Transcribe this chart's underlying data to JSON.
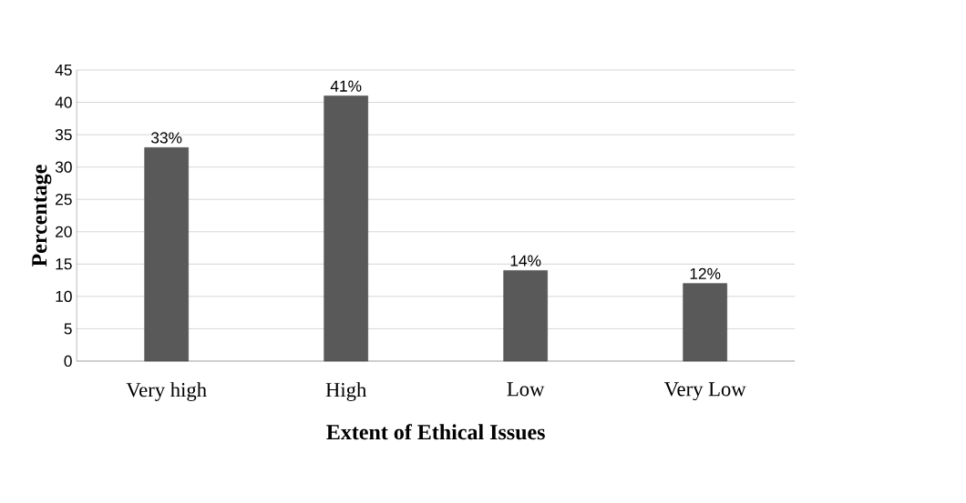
{
  "chart_data": {
    "type": "bar",
    "xlabel": "Extent of Ethical Issues",
    "ylabel": "Percentage",
    "categories": [
      "Very high",
      "High",
      "Low",
      "Very Low"
    ],
    "values": [
      33,
      41,
      14,
      12
    ],
    "value_labels": [
      "33%",
      "41%",
      "14%",
      "12%"
    ],
    "color": "#595959",
    "ylim": [
      0,
      45
    ],
    "yticks": [
      0,
      5,
      10,
      15,
      20,
      25,
      30,
      35,
      40,
      45
    ],
    "grid": "y"
  }
}
